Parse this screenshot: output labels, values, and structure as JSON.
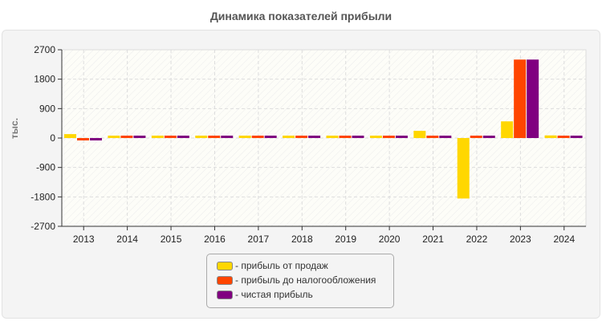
{
  "chart_data": {
    "type": "bar",
    "title": "Динамика показателей прибыли",
    "xlabel": "",
    "ylabel": "тыс.",
    "ylim": [
      -2700,
      2700
    ],
    "yticks": [
      2700,
      1800,
      900,
      0,
      -900,
      -1800,
      -2700
    ],
    "categories": [
      "2013",
      "2014",
      "2015",
      "2016",
      "2017",
      "2018",
      "2019",
      "2020",
      "2021",
      "2022",
      "2023",
      "2024"
    ],
    "series": [
      {
        "name": "прибыль от продаж",
        "color": "#FFD700",
        "values": [
          120,
          30,
          30,
          30,
          30,
          30,
          30,
          30,
          220,
          -1850,
          510,
          80
        ]
      },
      {
        "name": "прибыль до налогообложения",
        "color": "#FF4500",
        "values": [
          -30,
          30,
          30,
          30,
          30,
          30,
          30,
          30,
          30,
          30,
          2400,
          30
        ]
      },
      {
        "name": "чистая прибыль",
        "color": "#800080",
        "values": [
          -30,
          30,
          30,
          30,
          30,
          30,
          30,
          30,
          30,
          30,
          2400,
          30
        ]
      }
    ],
    "grid": true,
    "legend_position": "bottom"
  },
  "legend": {
    "items": [
      {
        "label": "- прибыль от продаж",
        "color": "#FFD700"
      },
      {
        "label": "- прибыль до налогообложения",
        "color": "#FF4500"
      },
      {
        "label": "- чистая прибыль",
        "color": "#800080"
      }
    ]
  }
}
